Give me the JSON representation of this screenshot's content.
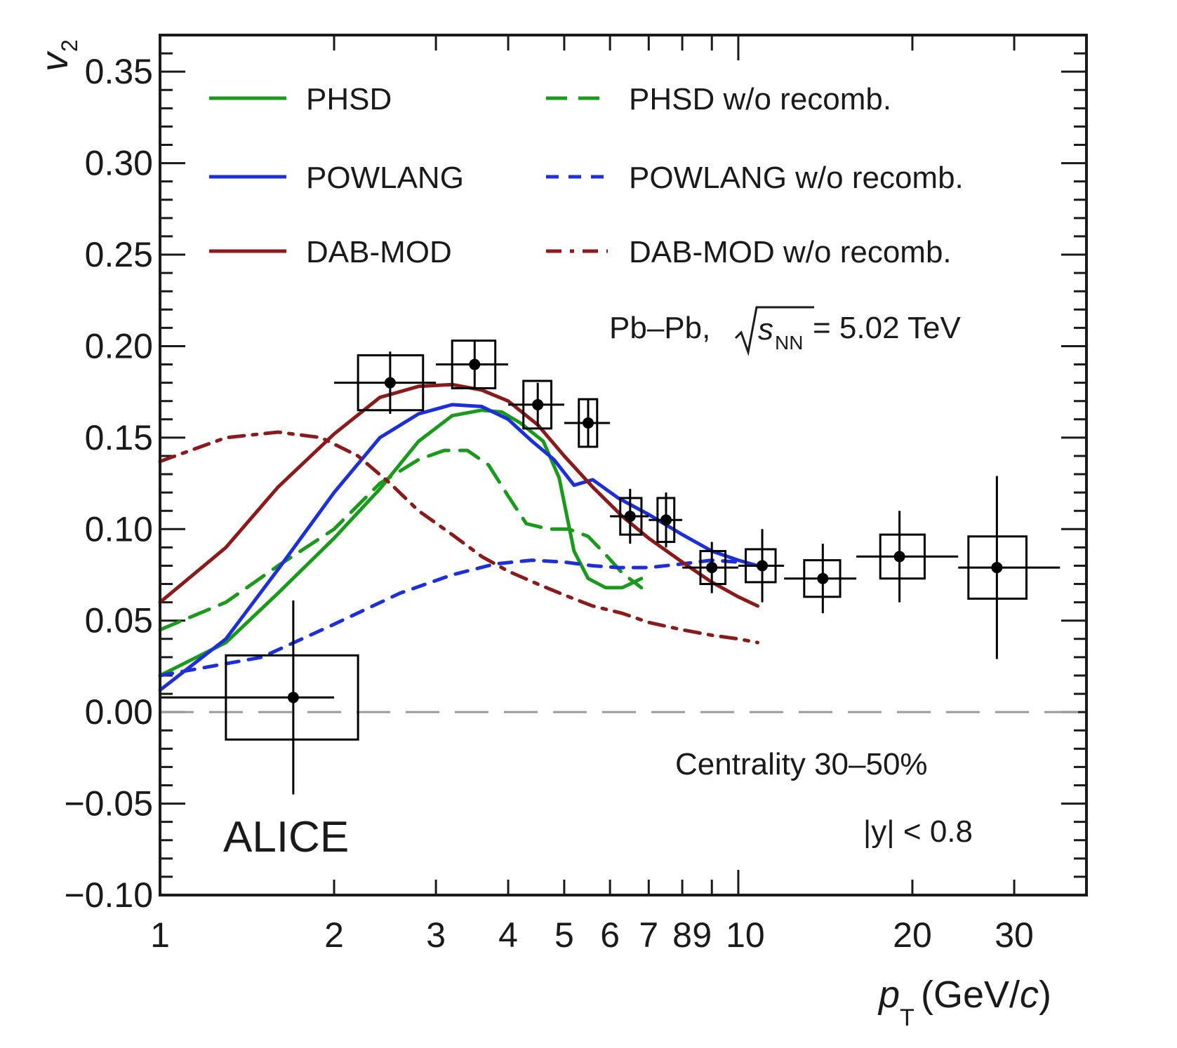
{
  "chart_data": {
    "type": "line",
    "xscale": "log",
    "xlim": [
      1,
      40
    ],
    "ylim": [
      -0.1,
      0.37
    ],
    "xlabel": {
      "main": "p",
      "sub": "T",
      "units_pre": " (GeV/",
      "units_italic": "c",
      "units_post": ")"
    },
    "ylabel": {
      "main": "v",
      "sub": "2"
    },
    "x_tick_labels": [
      {
        "value": 1,
        "label": "1"
      },
      {
        "value": 2,
        "label": "2"
      },
      {
        "value": 3,
        "label": "3"
      },
      {
        "value": 4,
        "label": "4"
      },
      {
        "value": 5,
        "label": "5"
      },
      {
        "value": 6,
        "label": "6"
      },
      {
        "value": 7,
        "label": "7"
      },
      {
        "value": 8,
        "label": "8"
      },
      {
        "value": 9,
        "label": "9"
      },
      {
        "value": 10,
        "label": "10"
      },
      {
        "value": 20,
        "label": "20"
      },
      {
        "value": 30,
        "label": "30"
      }
    ],
    "y_tick_labels": [
      {
        "value": -0.1,
        "label": "−0.10"
      },
      {
        "value": -0.05,
        "label": "−0.05"
      },
      {
        "value": 0.0,
        "label": "0.00"
      },
      {
        "value": 0.05,
        "label": "0.05"
      },
      {
        "value": 0.1,
        "label": "0.10"
      },
      {
        "value": 0.15,
        "label": "0.15"
      },
      {
        "value": 0.2,
        "label": "0.20"
      },
      {
        "value": 0.25,
        "label": "0.25"
      },
      {
        "value": 0.3,
        "label": "0.30"
      },
      {
        "value": 0.35,
        "label": "0.35"
      }
    ],
    "zero_line": true,
    "annotations": {
      "collision_prefix": "Pb–Pb, ",
      "collision_var": "s",
      "collision_sub": "NN",
      "collision_suffix": " = 5.02 TeV",
      "centrality": "Centrality 30–50%",
      "rapidity": "|y| < 0.8",
      "experiment": "ALICE"
    },
    "legend_position": "top",
    "series": [
      {
        "name": "PHSD",
        "color": "#1a9a1a",
        "style": "solid",
        "x": [
          1,
          1.3,
          1.6,
          2,
          2.4,
          2.8,
          3.2,
          3.6,
          3.9,
          4.2,
          4.6,
          4.9,
          5.2,
          5.5,
          5.9,
          6.3,
          6.8
        ],
        "y": [
          0.02,
          0.038,
          0.065,
          0.095,
          0.122,
          0.148,
          0.162,
          0.165,
          0.164,
          0.158,
          0.148,
          0.128,
          0.088,
          0.073,
          0.068,
          0.068,
          0.073
        ]
      },
      {
        "name": "PHSD w/o recomb.",
        "color": "#1a9a1a",
        "style": "dashed",
        "x": [
          1,
          1.3,
          1.6,
          2,
          2.4,
          2.8,
          3.1,
          3.4,
          3.7,
          4.0,
          4.3,
          4.7,
          5.1,
          5.5,
          5.9,
          6.3,
          6.8
        ],
        "y": [
          0.045,
          0.06,
          0.08,
          0.1,
          0.125,
          0.138,
          0.143,
          0.143,
          0.135,
          0.118,
          0.103,
          0.1,
          0.1,
          0.096,
          0.086,
          0.076,
          0.068
        ]
      },
      {
        "name": "POWLANG",
        "color": "#1c2fd8",
        "style": "solid",
        "x": [
          1,
          1.3,
          1.6,
          2,
          2.4,
          2.8,
          3.2,
          3.6,
          4.0,
          4.4,
          4.8,
          5.2,
          5.6,
          6.2,
          7.0,
          8.0,
          9.0,
          10.0,
          10.8
        ],
        "y": [
          0.012,
          0.04,
          0.078,
          0.12,
          0.15,
          0.163,
          0.168,
          0.167,
          0.16,
          0.148,
          0.138,
          0.124,
          0.127,
          0.117,
          0.108,
          0.097,
          0.088,
          0.083,
          0.08
        ]
      },
      {
        "name": "POWLANG w/o recomb.",
        "color": "#1c2fd8",
        "style": "dotted",
        "x": [
          1,
          1.5,
          2,
          2.6,
          3.2,
          3.8,
          4.4,
          5.0,
          5.6,
          6.2,
          7.0,
          8.0,
          9.0,
          10.0
        ],
        "y": [
          0.02,
          0.03,
          0.048,
          0.065,
          0.075,
          0.081,
          0.083,
          0.082,
          0.08,
          0.079,
          0.079,
          0.081,
          0.083,
          0.082
        ]
      },
      {
        "name": "DAB-MOD",
        "color": "#8b1a1a",
        "style": "solid",
        "x": [
          1,
          1.3,
          1.6,
          2,
          2.4,
          2.8,
          3.2,
          3.6,
          4.0,
          4.5,
          5.0,
          5.6,
          6.3,
          7.0,
          8.0,
          9.0,
          10.0,
          10.8
        ],
        "y": [
          0.06,
          0.09,
          0.123,
          0.152,
          0.172,
          0.178,
          0.179,
          0.176,
          0.17,
          0.157,
          0.14,
          0.123,
          0.107,
          0.095,
          0.082,
          0.071,
          0.063,
          0.058
        ]
      },
      {
        "name": "DAB-MOD w/o recomb.",
        "color": "#8b1a1a",
        "style": "dashdot",
        "x": [
          1,
          1.3,
          1.6,
          1.9,
          2.2,
          2.5,
          2.8,
          3.2,
          3.6,
          4.0,
          4.5,
          5.0,
          5.6,
          6.3,
          7.0,
          8.0,
          9.0,
          10.0,
          10.8
        ],
        "y": [
          0.137,
          0.15,
          0.153,
          0.15,
          0.14,
          0.125,
          0.11,
          0.097,
          0.085,
          0.077,
          0.07,
          0.064,
          0.058,
          0.054,
          0.049,
          0.045,
          0.042,
          0.04,
          0.038
        ]
      }
    ],
    "data_points": {
      "name": "ALICE data",
      "x": [
        1.7,
        2.5,
        3.5,
        4.5,
        5.5,
        6.5,
        7.5,
        9.0,
        11.0,
        14.0,
        19.0,
        28.0
      ],
      "y": [
        0.008,
        0.18,
        0.19,
        0.168,
        0.158,
        0.107,
        0.105,
        0.079,
        0.08,
        0.073,
        0.085,
        0.079
      ],
      "x_low": [
        1.0,
        2.0,
        3.0,
        4.0,
        5.0,
        6.0,
        7.0,
        8.0,
        10.0,
        12.0,
        16.0,
        24.0
      ],
      "x_high": [
        2.0,
        3.0,
        4.0,
        5.0,
        6.0,
        7.0,
        8.0,
        10.0,
        12.0,
        16.0,
        24.0,
        36.0
      ],
      "stat_err": [
        0.053,
        0.017,
        0.013,
        0.012,
        0.013,
        0.015,
        0.015,
        0.014,
        0.02,
        0.019,
        0.025,
        0.05
      ],
      "syst_lo_x": [
        1.3,
        2.2,
        3.2,
        4.25,
        5.3,
        6.25,
        7.25,
        8.6,
        10.3,
        13.0,
        17.6,
        25.0
      ],
      "syst_hi_x": [
        2.2,
        2.85,
        3.8,
        4.75,
        5.7,
        6.8,
        7.75,
        9.5,
        11.6,
        15.0,
        21.0,
        31.5
      ],
      "syst_err": [
        0.023,
        0.015,
        0.013,
        0.013,
        0.013,
        0.01,
        0.012,
        0.009,
        0.009,
        0.01,
        0.012,
        0.017
      ]
    }
  }
}
